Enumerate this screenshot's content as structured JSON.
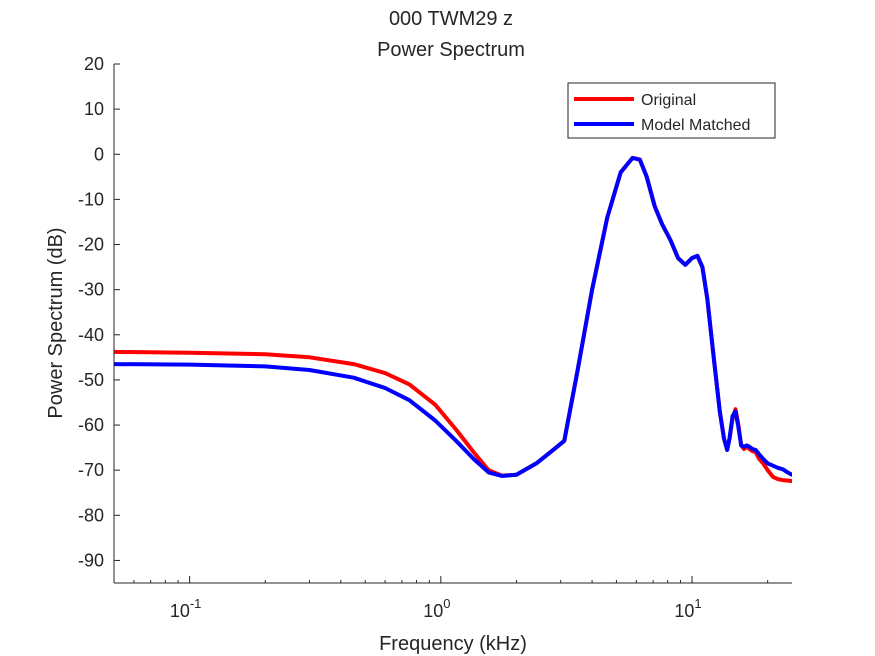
{
  "chart_data": {
    "type": "line",
    "title": "000 TWM29 z",
    "subtitle": "Power Spectrum",
    "xlabel": "Frequency (kHz)",
    "ylabel": "Power Spectrum (dB)",
    "xscale": "log",
    "xlim": [
      0.05,
      25
    ],
    "ylim": [
      -95,
      20
    ],
    "xticks": [
      {
        "value": 0.1,
        "base": "10",
        "exp": "-1"
      },
      {
        "value": 1,
        "base": "10",
        "exp": "0"
      },
      {
        "value": 10,
        "base": "10",
        "exp": "1"
      }
    ],
    "yticks": [
      20,
      10,
      0,
      -10,
      -20,
      -30,
      -40,
      -50,
      -60,
      -70,
      -80,
      -90
    ],
    "grid": false,
    "legend_position": "top-right",
    "series": [
      {
        "name": "Original",
        "color": "#ff0000",
        "x": [
          0.05,
          0.1,
          0.2,
          0.3,
          0.45,
          0.6,
          0.75,
          0.95,
          1.15,
          1.35,
          1.55,
          1.75,
          2.0,
          2.4,
          2.8,
          3.1,
          3.5,
          4.0,
          4.6,
          5.2,
          5.8,
          6.2,
          6.6,
          7.1,
          7.6,
          8.2,
          8.8,
          9.4,
          10.0,
          10.5,
          11.0,
          11.5,
          12.2,
          12.9,
          13.4,
          13.8,
          14.1,
          14.5,
          14.9,
          15.3,
          15.7,
          16.1,
          16.5,
          16.9,
          17.4,
          17.9,
          18.5,
          19.2,
          20.0,
          21.0,
          22.0,
          23.0,
          24.0,
          25.0
        ],
        "y": [
          -43.8,
          -44.0,
          -44.3,
          -45.0,
          -46.5,
          -48.5,
          -51.0,
          -55.5,
          -61.0,
          -66.0,
          -70.0,
          -71.2,
          -71.0,
          -68.5,
          -65.5,
          -63.5,
          -48.0,
          -30.0,
          -14.0,
          -4.0,
          -0.8,
          -1.2,
          -5.0,
          -11.5,
          -15.5,
          -19.0,
          -23.0,
          -24.5,
          -23.0,
          -22.5,
          -25.0,
          -32.0,
          -45.0,
          -57.0,
          -63.0,
          -65.5,
          -63.0,
          -58.5,
          -56.5,
          -60.0,
          -64.5,
          -65.3,
          -64.8,
          -65.3,
          -65.8,
          -66.0,
          -67.5,
          -68.5,
          -70.0,
          -71.5,
          -72.0,
          -72.2,
          -72.3,
          -72.4
        ]
      },
      {
        "name": "Model Matched",
        "color": "#0000ff",
        "x": [
          0.05,
          0.1,
          0.2,
          0.3,
          0.45,
          0.6,
          0.75,
          0.95,
          1.15,
          1.35,
          1.55,
          1.75,
          2.0,
          2.4,
          2.8,
          3.1,
          3.5,
          4.0,
          4.6,
          5.2,
          5.8,
          6.2,
          6.6,
          7.1,
          7.6,
          8.2,
          8.8,
          9.4,
          10.0,
          10.5,
          11.0,
          11.5,
          12.2,
          12.9,
          13.4,
          13.8,
          14.1,
          14.5,
          14.9,
          15.3,
          15.7,
          16.1,
          16.5,
          16.9,
          17.4,
          17.9,
          18.5,
          19.2,
          20.0,
          21.0,
          22.0,
          23.0,
          24.0,
          25.0
        ],
        "y": [
          -46.5,
          -46.6,
          -47.0,
          -47.8,
          -49.5,
          -51.8,
          -54.5,
          -59.0,
          -63.5,
          -67.5,
          -70.5,
          -71.3,
          -71.0,
          -68.5,
          -65.5,
          -63.5,
          -48.0,
          -30.0,
          -14.0,
          -4.0,
          -0.8,
          -1.2,
          -5.0,
          -11.5,
          -15.5,
          -19.0,
          -23.0,
          -24.5,
          -23.0,
          -22.5,
          -25.0,
          -32.0,
          -45.0,
          -57.0,
          -63.0,
          -65.5,
          -63.0,
          -58.0,
          -57.0,
          -60.5,
          -64.5,
          -64.8,
          -64.5,
          -64.8,
          -65.3,
          -65.5,
          -66.5,
          -67.5,
          -68.5,
          -69.0,
          -69.5,
          -69.8,
          -70.5,
          -71.0
        ]
      }
    ]
  }
}
